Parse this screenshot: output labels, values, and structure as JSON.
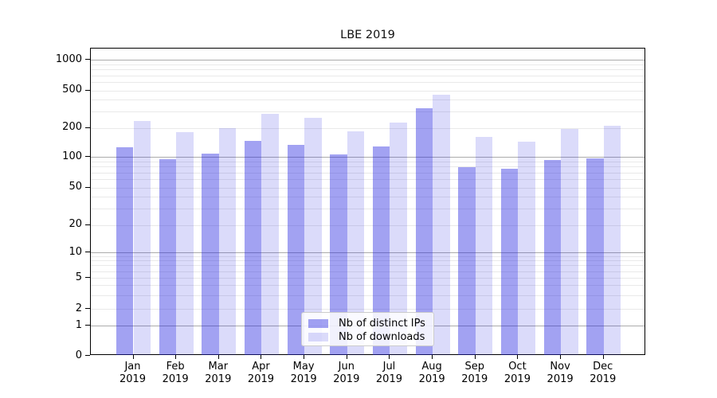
{
  "chart_data": {
    "type": "bar",
    "title": "LBE 2019",
    "categories": [
      "Jan 2019",
      "Feb 2019",
      "Mar 2019",
      "Apr 2019",
      "May 2019",
      "Jun 2019",
      "Jul 2019",
      "Aug 2019",
      "Sep 2019",
      "Oct 2019",
      "Nov 2019",
      "Dec 2019"
    ],
    "series": [
      {
        "name": "Nb of distinct IPs",
        "color": "#a2a2f2",
        "fill": "rgba(34,34,224,0.42)",
        "values": [
          125,
          94,
          108,
          147,
          133,
          106,
          127,
          325,
          79,
          76,
          93,
          97
        ]
      },
      {
        "name": "Nb of downloads",
        "color": "#dcdcfa",
        "fill": "rgba(34,34,224,0.16)",
        "values": [
          235,
          180,
          197,
          280,
          255,
          183,
          225,
          445,
          160,
          144,
          193,
          210
        ]
      }
    ],
    "xlabel": "",
    "ylabel": "",
    "y_axis": {
      "scale": "log (0 floor)",
      "tick_labels": [
        "0",
        "1",
        "2",
        "5",
        "10",
        "20",
        "50",
        "100",
        "200",
        "500",
        "1000"
      ],
      "tick_values": [
        0,
        1,
        2,
        5,
        10,
        20,
        50,
        100,
        200,
        500,
        1000
      ],
      "range": [
        0,
        1000
      ]
    },
    "grid": "on",
    "legend_position": "lower center inside plot"
  }
}
